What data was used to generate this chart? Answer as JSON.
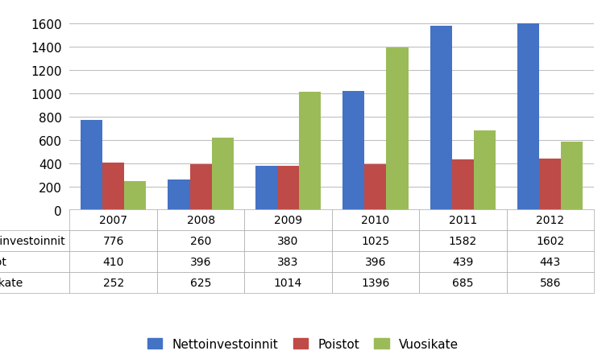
{
  "years": [
    "2007",
    "2008",
    "2009",
    "2010",
    "2011",
    "2012"
  ],
  "series": {
    "Nettoinvestoinnit": [
      776,
      260,
      380,
      1025,
      1582,
      1602
    ],
    "Poistot": [
      410,
      396,
      383,
      396,
      439,
      443
    ],
    "Vuosikate": [
      252,
      625,
      1014,
      1396,
      685,
      586
    ]
  },
  "colors": {
    "Nettoinvestoinnit": "#4472C4",
    "Poistot": "#BE4B48",
    "Vuosikate": "#9BBB59"
  },
  "ylim": [
    0,
    1700
  ],
  "yticks": [
    0,
    200,
    400,
    600,
    800,
    1000,
    1200,
    1400,
    1600
  ],
  "table_rows": [
    "Nettoinvestoinnit",
    "Poistot",
    "Vuosikate"
  ],
  "bar_width": 0.25,
  "background_color": "#FFFFFF",
  "grid_color": "#C0C0C0",
  "legend_ncol": 3
}
